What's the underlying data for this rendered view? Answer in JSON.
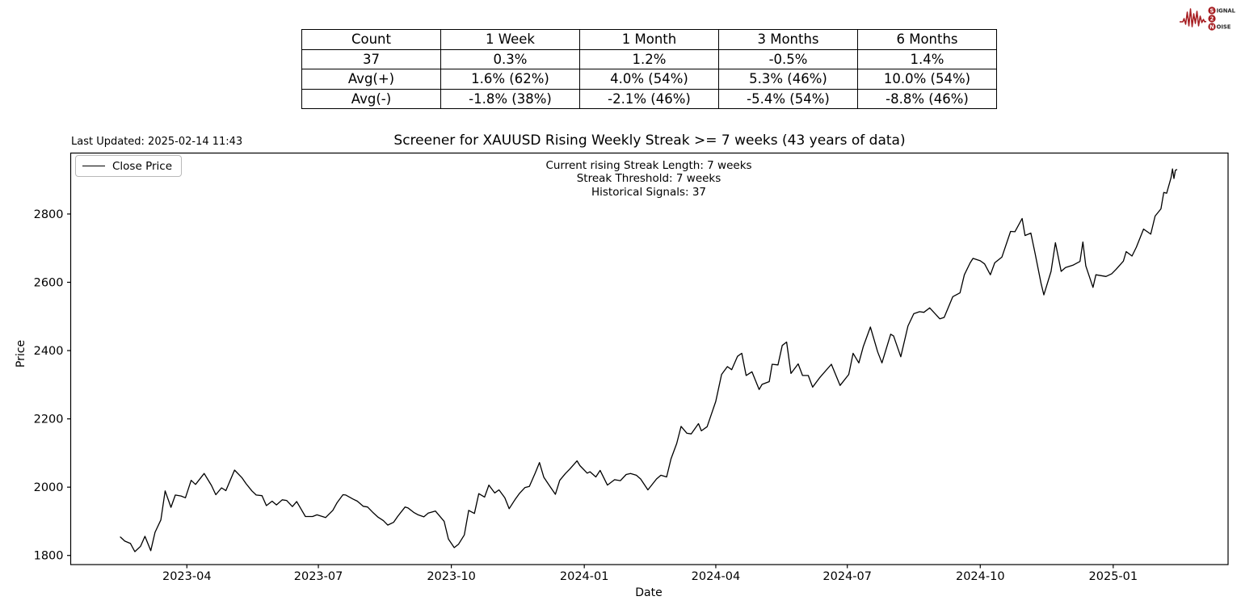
{
  "header": {
    "last_updated": "Last Updated: 2025-02-14 11:43"
  },
  "logo": {
    "color": "#a61c20",
    "word1_initial": "S",
    "word1_rest": "IGNAL",
    "word2": "2",
    "word3_initial": "N",
    "word3_rest": "OISE"
  },
  "stats_table": {
    "headers": [
      "Count",
      "1 Week",
      "1 Month",
      "3 Months",
      "6 Months"
    ],
    "rows": [
      [
        "37",
        "0.3%",
        "1.2%",
        "-0.5%",
        "1.4%"
      ],
      [
        "Avg(+)",
        "1.6% (62%)",
        "4.0% (54%)",
        "5.3% (46%)",
        "10.0% (54%)"
      ],
      [
        "Avg(-)",
        "-1.8% (38%)",
        "-2.1% (46%)",
        "-5.4% (54%)",
        "-8.8% (46%)"
      ]
    ]
  },
  "chart_data": {
    "type": "line",
    "title": "Screener for XAUUSD Rising Weekly Streak >= 7 weeks (43 years of data)",
    "xlabel": "Date",
    "ylabel": "Price",
    "grid": false,
    "annotations": [
      "Current rising Streak Length: 7 weeks",
      "Streak Threshold: 7 weeks",
      "Historical Signals: 37"
    ],
    "legend": {
      "position": "upper left",
      "entries": [
        {
          "label": "Close Price",
          "color": "#000000"
        }
      ]
    },
    "ylim": [
      1773,
      2978
    ],
    "yticks": [
      1800,
      2000,
      2200,
      2400,
      2600,
      2800
    ],
    "xticks": [
      {
        "label": "2023-04",
        "date": "2023-04-01"
      },
      {
        "label": "2023-07",
        "date": "2023-07-01"
      },
      {
        "label": "2023-10",
        "date": "2023-10-01"
      },
      {
        "label": "2024-01",
        "date": "2024-01-01"
      },
      {
        "label": "2024-04",
        "date": "2024-04-01"
      },
      {
        "label": "2024-07",
        "date": "2024-07-01"
      },
      {
        "label": "2024-10",
        "date": "2024-10-01"
      },
      {
        "label": "2025-01",
        "date": "2025-01-01"
      }
    ],
    "x_data_range": [
      "2023-02-14",
      "2025-02-14"
    ],
    "series": [
      {
        "name": "Close Price",
        "color": "#000000",
        "points": [
          [
            "2023-02-14",
            1854
          ],
          [
            "2023-02-17",
            1842
          ],
          [
            "2023-02-21",
            1835
          ],
          [
            "2023-02-24",
            1811
          ],
          [
            "2023-02-28",
            1827
          ],
          [
            "2023-03-03",
            1856
          ],
          [
            "2023-03-07",
            1814
          ],
          [
            "2023-03-10",
            1868
          ],
          [
            "2023-03-14",
            1904
          ],
          [
            "2023-03-17",
            1989
          ],
          [
            "2023-03-21",
            1941
          ],
          [
            "2023-03-24",
            1977
          ],
          [
            "2023-03-28",
            1974
          ],
          [
            "2023-03-31",
            1969
          ],
          [
            "2023-04-04",
            2020
          ],
          [
            "2023-04-07",
            2008
          ],
          [
            "2023-04-13",
            2040
          ],
          [
            "2023-04-18",
            2005
          ],
          [
            "2023-04-21",
            1978
          ],
          [
            "2023-04-25",
            1998
          ],
          [
            "2023-04-28",
            1990
          ],
          [
            "2023-05-04",
            2050
          ],
          [
            "2023-05-09",
            2028
          ],
          [
            "2023-05-12",
            2010
          ],
          [
            "2023-05-16",
            1989
          ],
          [
            "2023-05-19",
            1977
          ],
          [
            "2023-05-23",
            1975
          ],
          [
            "2023-05-26",
            1946
          ],
          [
            "2023-05-30",
            1959
          ],
          [
            "2023-06-02",
            1948
          ],
          [
            "2023-06-06",
            1963
          ],
          [
            "2023-06-09",
            1961
          ],
          [
            "2023-06-13",
            1943
          ],
          [
            "2023-06-16",
            1958
          ],
          [
            "2023-06-22",
            1914
          ],
          [
            "2023-06-27",
            1914
          ],
          [
            "2023-06-30",
            1919
          ],
          [
            "2023-07-06",
            1911
          ],
          [
            "2023-07-11",
            1932
          ],
          [
            "2023-07-14",
            1955
          ],
          [
            "2023-07-18",
            1978
          ],
          [
            "2023-07-20",
            1977
          ],
          [
            "2023-07-25",
            1965
          ],
          [
            "2023-07-28",
            1959
          ],
          [
            "2023-08-01",
            1944
          ],
          [
            "2023-08-04",
            1942
          ],
          [
            "2023-08-08",
            1925
          ],
          [
            "2023-08-11",
            1913
          ],
          [
            "2023-08-15",
            1902
          ],
          [
            "2023-08-18",
            1889
          ],
          [
            "2023-08-22",
            1897
          ],
          [
            "2023-08-25",
            1915
          ],
          [
            "2023-08-30",
            1942
          ],
          [
            "2023-09-01",
            1939
          ],
          [
            "2023-09-05",
            1926
          ],
          [
            "2023-09-08",
            1919
          ],
          [
            "2023-09-12",
            1913
          ],
          [
            "2023-09-15",
            1924
          ],
          [
            "2023-09-20",
            1930
          ],
          [
            "2023-09-26",
            1900
          ],
          [
            "2023-09-29",
            1848
          ],
          [
            "2023-10-03",
            1823
          ],
          [
            "2023-10-06",
            1833
          ],
          [
            "2023-10-10",
            1860
          ],
          [
            "2023-10-13",
            1932
          ],
          [
            "2023-10-17",
            1923
          ],
          [
            "2023-10-20",
            1981
          ],
          [
            "2023-10-24",
            1971
          ],
          [
            "2023-10-27",
            2006
          ],
          [
            "2023-10-31",
            1983
          ],
          [
            "2023-11-03",
            1992
          ],
          [
            "2023-11-07",
            1969
          ],
          [
            "2023-11-10",
            1937
          ],
          [
            "2023-11-14",
            1963
          ],
          [
            "2023-11-17",
            1981
          ],
          [
            "2023-11-21",
            1999
          ],
          [
            "2023-11-24",
            2002
          ],
          [
            "2023-11-28",
            2041
          ],
          [
            "2023-12-01",
            2072
          ],
          [
            "2023-12-04",
            2029
          ],
          [
            "2023-12-08",
            2004
          ],
          [
            "2023-12-12",
            1979
          ],
          [
            "2023-12-15",
            2020
          ],
          [
            "2023-12-19",
            2040
          ],
          [
            "2023-12-22",
            2053
          ],
          [
            "2023-12-27",
            2077
          ],
          [
            "2023-12-29",
            2063
          ],
          [
            "2024-01-03",
            2041
          ],
          [
            "2024-01-05",
            2045
          ],
          [
            "2024-01-09",
            2030
          ],
          [
            "2024-01-12",
            2049
          ],
          [
            "2024-01-17",
            2006
          ],
          [
            "2024-01-22",
            2022
          ],
          [
            "2024-01-26",
            2019
          ],
          [
            "2024-01-30",
            2037
          ],
          [
            "2024-02-02",
            2040
          ],
          [
            "2024-02-06",
            2035
          ],
          [
            "2024-02-09",
            2024
          ],
          [
            "2024-02-14",
            1992
          ],
          [
            "2024-02-20",
            2024
          ],
          [
            "2024-02-23",
            2035
          ],
          [
            "2024-02-27",
            2030
          ],
          [
            "2024-03-01",
            2083
          ],
          [
            "2024-03-05",
            2128
          ],
          [
            "2024-03-08",
            2178
          ],
          [
            "2024-03-12",
            2158
          ],
          [
            "2024-03-15",
            2156
          ],
          [
            "2024-03-20",
            2186
          ],
          [
            "2024-03-22",
            2165
          ],
          [
            "2024-03-26",
            2177
          ],
          [
            "2024-04-01",
            2251
          ],
          [
            "2024-04-05",
            2330
          ],
          [
            "2024-04-09",
            2353
          ],
          [
            "2024-04-12",
            2344
          ],
          [
            "2024-04-16",
            2383
          ],
          [
            "2024-04-19",
            2392
          ],
          [
            "2024-04-22",
            2327
          ],
          [
            "2024-04-26",
            2338
          ],
          [
            "2024-05-01",
            2286
          ],
          [
            "2024-05-03",
            2301
          ],
          [
            "2024-05-08",
            2309
          ],
          [
            "2024-05-10",
            2360
          ],
          [
            "2024-05-14",
            2358
          ],
          [
            "2024-05-17",
            2415
          ],
          [
            "2024-05-20",
            2425
          ],
          [
            "2024-05-23",
            2333
          ],
          [
            "2024-05-28",
            2361
          ],
          [
            "2024-05-31",
            2327
          ],
          [
            "2024-06-04",
            2327
          ],
          [
            "2024-06-07",
            2293
          ],
          [
            "2024-06-12",
            2321
          ],
          [
            "2024-06-20",
            2360
          ],
          [
            "2024-06-26",
            2298
          ],
          [
            "2024-07-02",
            2330
          ],
          [
            "2024-07-05",
            2392
          ],
          [
            "2024-07-09",
            2364
          ],
          [
            "2024-07-12",
            2411
          ],
          [
            "2024-07-17",
            2469
          ],
          [
            "2024-07-22",
            2396
          ],
          [
            "2024-07-25",
            2364
          ],
          [
            "2024-07-31",
            2448
          ],
          [
            "2024-08-02",
            2443
          ],
          [
            "2024-08-07",
            2382
          ],
          [
            "2024-08-12",
            2472
          ],
          [
            "2024-08-16",
            2508
          ],
          [
            "2024-08-20",
            2514
          ],
          [
            "2024-08-23",
            2512
          ],
          [
            "2024-08-27",
            2525
          ],
          [
            "2024-09-03",
            2493
          ],
          [
            "2024-09-06",
            2497
          ],
          [
            "2024-09-12",
            2558
          ],
          [
            "2024-09-17",
            2569
          ],
          [
            "2024-09-20",
            2622
          ],
          [
            "2024-09-24",
            2657
          ],
          [
            "2024-09-26",
            2670
          ],
          [
            "2024-10-01",
            2663
          ],
          [
            "2024-10-04",
            2654
          ],
          [
            "2024-10-08",
            2622
          ],
          [
            "2024-10-11",
            2657
          ],
          [
            "2024-10-16",
            2674
          ],
          [
            "2024-10-22",
            2749
          ],
          [
            "2024-10-25",
            2748
          ],
          [
            "2024-10-30",
            2787
          ],
          [
            "2024-11-01",
            2737
          ],
          [
            "2024-11-05",
            2744
          ],
          [
            "2024-11-08",
            2684
          ],
          [
            "2024-11-12",
            2598
          ],
          [
            "2024-11-14",
            2563
          ],
          [
            "2024-11-19",
            2632
          ],
          [
            "2024-11-22",
            2716
          ],
          [
            "2024-11-26",
            2632
          ],
          [
            "2024-11-29",
            2643
          ],
          [
            "2024-12-04",
            2650
          ],
          [
            "2024-12-09",
            2661
          ],
          [
            "2024-12-11",
            2718
          ],
          [
            "2024-12-13",
            2648
          ],
          [
            "2024-12-18",
            2585
          ],
          [
            "2024-12-20",
            2622
          ],
          [
            "2024-12-27",
            2617
          ],
          [
            "2024-12-31",
            2625
          ],
          [
            "2025-01-03",
            2638
          ],
          [
            "2025-01-08",
            2662
          ],
          [
            "2025-01-10",
            2690
          ],
          [
            "2025-01-14",
            2677
          ],
          [
            "2025-01-17",
            2703
          ],
          [
            "2025-01-22",
            2756
          ],
          [
            "2025-01-27",
            2741
          ],
          [
            "2025-01-30",
            2794
          ],
          [
            "2025-02-03",
            2815
          ],
          [
            "2025-02-05",
            2863
          ],
          [
            "2025-02-07",
            2861
          ],
          [
            "2025-02-10",
            2906
          ],
          [
            "2025-02-11",
            2932
          ],
          [
            "2025-02-12",
            2904
          ],
          [
            "2025-02-13",
            2928
          ],
          [
            "2025-02-14",
            2930
          ]
        ]
      }
    ]
  }
}
